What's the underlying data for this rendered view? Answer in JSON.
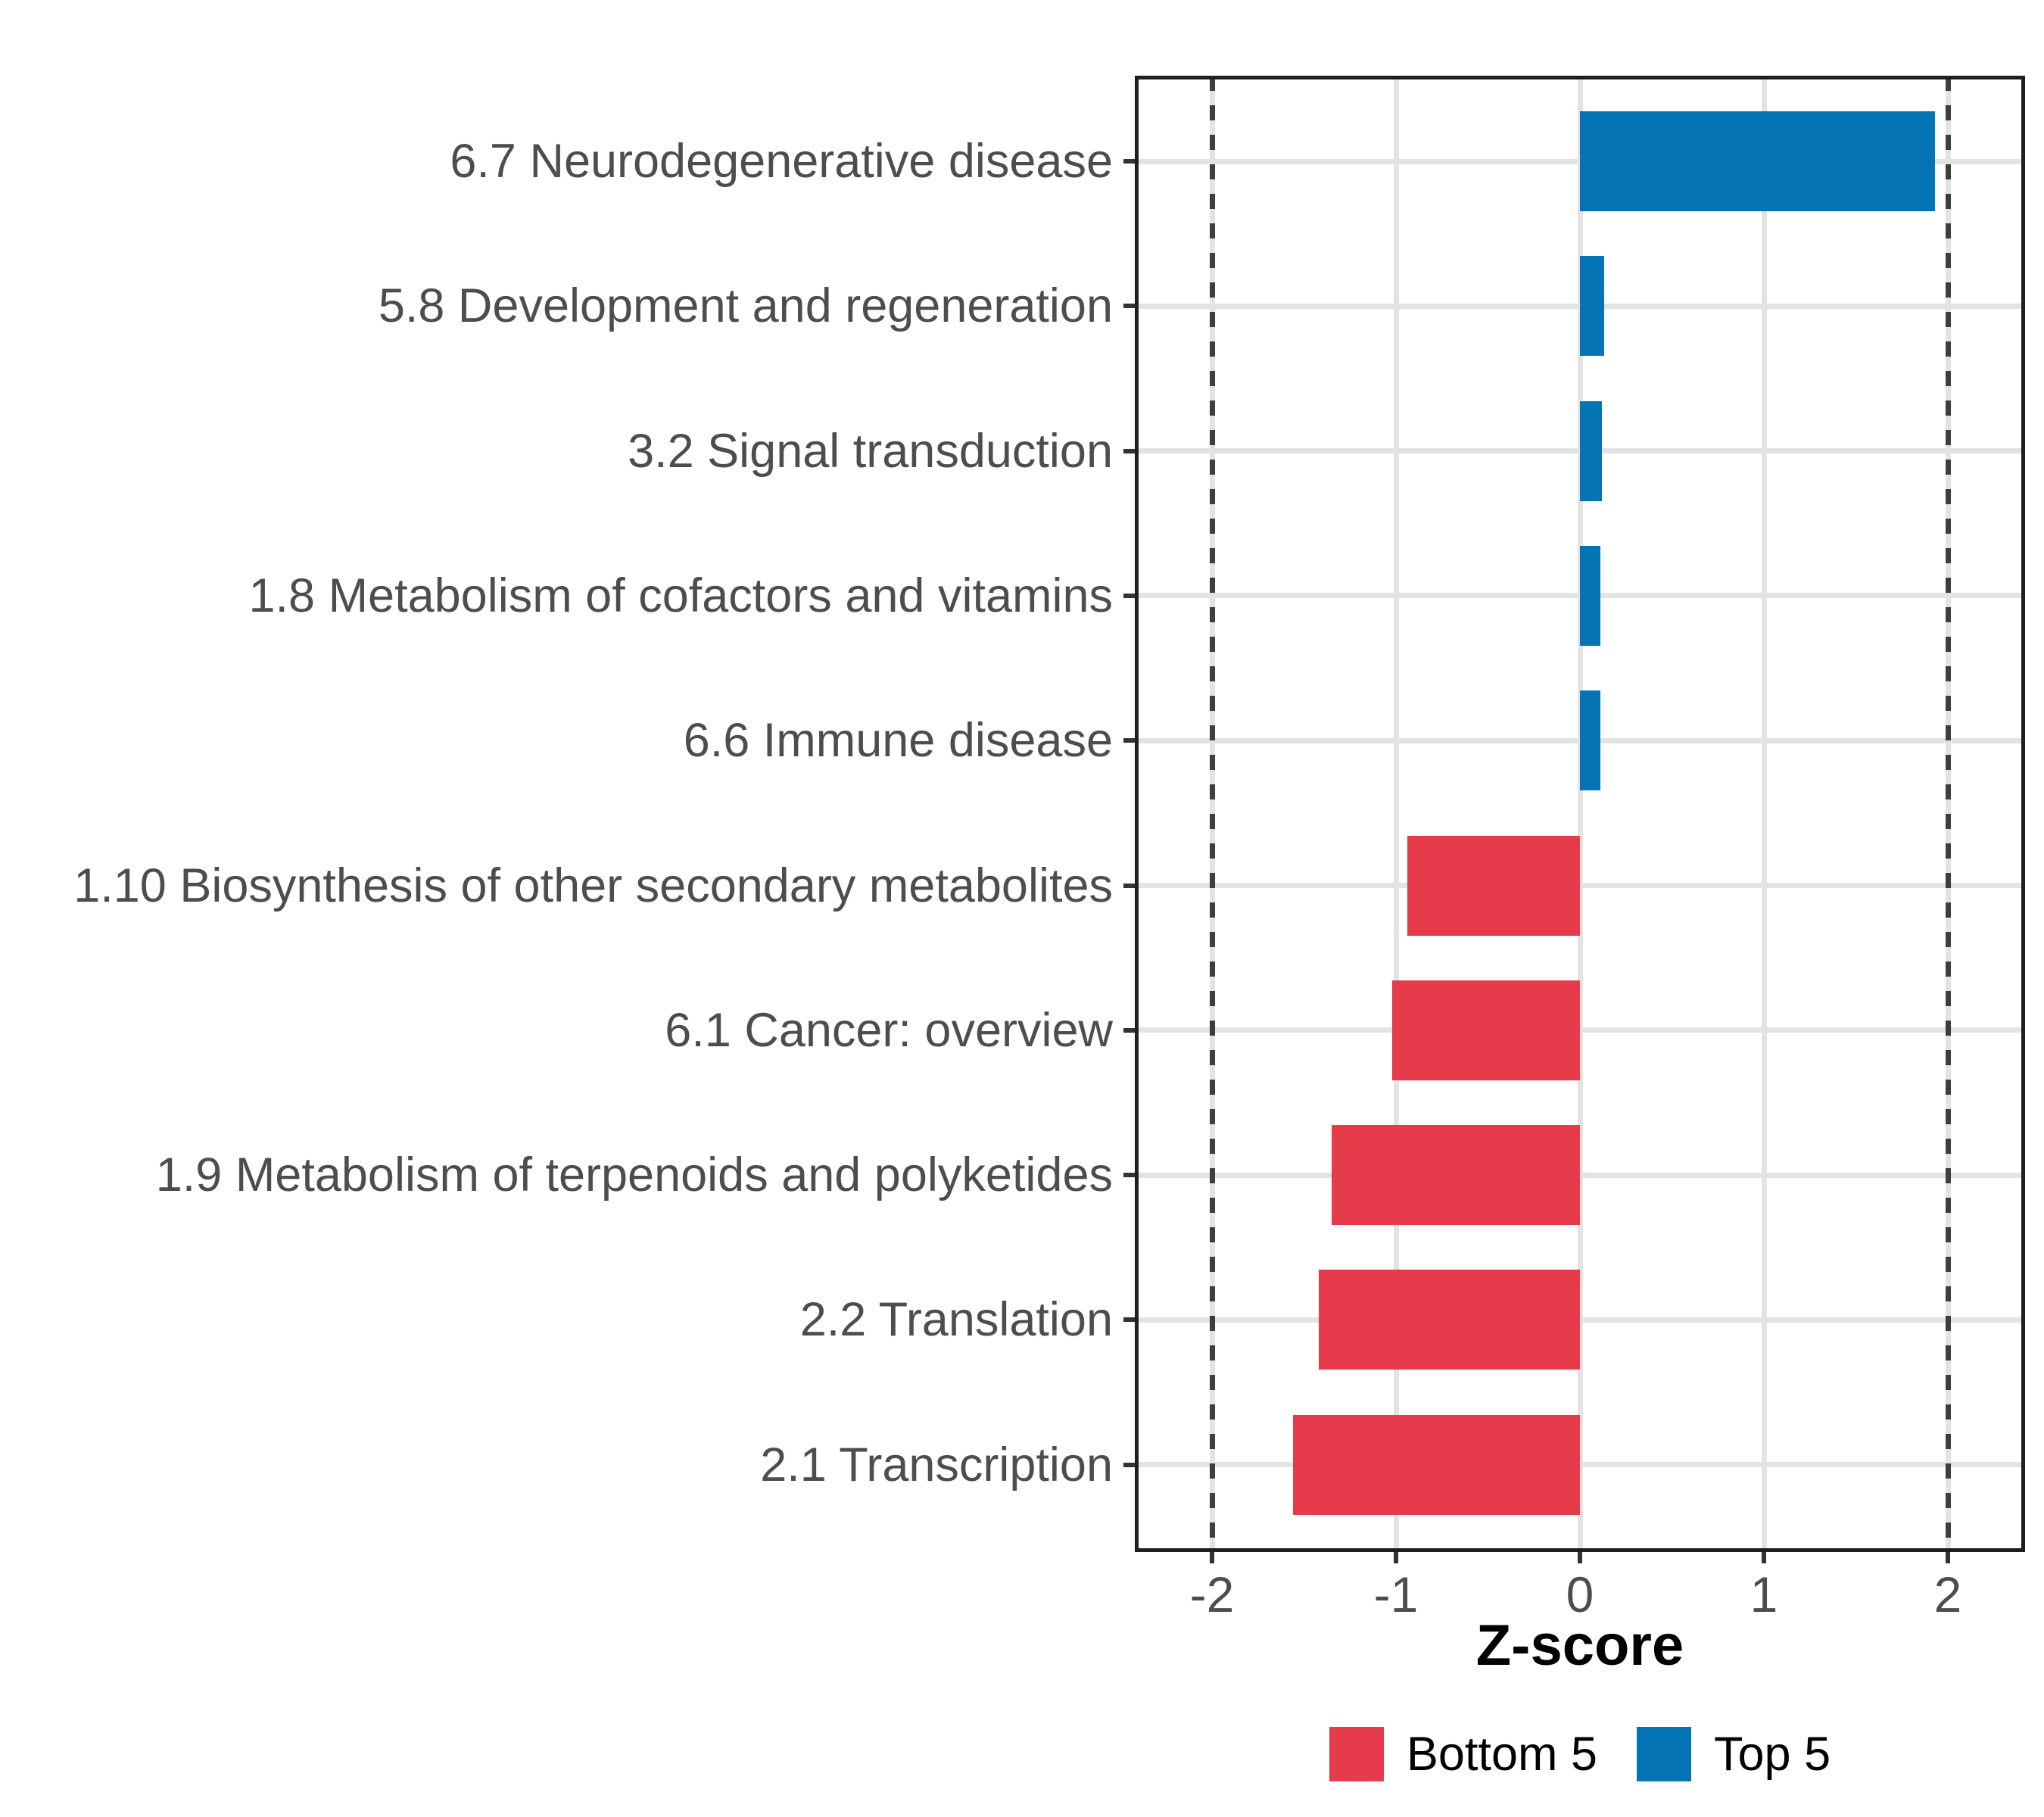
{
  "chart_data": {
    "type": "bar",
    "orientation": "horizontal",
    "xlabel": "Z-score",
    "categories": [
      "6.7 Neurodegenerative disease",
      "5.8 Development and regeneration",
      "3.2 Signal transduction",
      "1.8 Metabolism of cofactors and vitamins",
      "6.6 Immune disease",
      "1.10 Biosynthesis of other secondary metabolites",
      "6.1 Cancer: overview",
      "1.9 Metabolism of terpenoids and polyketides",
      "2.2 Translation",
      "2.1 Transcription"
    ],
    "series": [
      {
        "category": "6.7 Neurodegenerative disease",
        "value": 1.93,
        "group": "Top 5"
      },
      {
        "category": "5.8 Development and regeneration",
        "value": 0.13,
        "group": "Top 5"
      },
      {
        "category": "3.2 Signal transduction",
        "value": 0.12,
        "group": "Top 5"
      },
      {
        "category": "1.8 Metabolism of cofactors and vitamins",
        "value": 0.11,
        "group": "Top 5"
      },
      {
        "category": "6.6 Immune disease",
        "value": 0.11,
        "group": "Top 5"
      },
      {
        "category": "1.10 Biosynthesis of other secondary metabolites",
        "value": -0.94,
        "group": "Bottom 5"
      },
      {
        "category": "6.1 Cancer: overview",
        "value": -1.02,
        "group": "Bottom 5"
      },
      {
        "category": "1.9 Metabolism of terpenoids and polyketides",
        "value": -1.35,
        "group": "Bottom 5"
      },
      {
        "category": "2.2 Translation",
        "value": -1.42,
        "group": "Bottom 5"
      },
      {
        "category": "2.1 Transcription",
        "value": -1.56,
        "group": "Bottom 5"
      }
    ],
    "x_ticks": [
      -2,
      -1,
      0,
      1,
      2
    ],
    "x_tick_labels": [
      "-2",
      "-1",
      "0",
      "1",
      "2"
    ],
    "xlim": [
      -2.42,
      2.42
    ],
    "reference_lines": [
      -2,
      2
    ],
    "grid": "major only, light gray",
    "legend_position": "bottom",
    "legend": [
      {
        "label": "Bottom 5",
        "color": "#E63B4B"
      },
      {
        "label": "Top 5",
        "color": "#0474B4"
      }
    ],
    "colors": {
      "bottom5_red": "#E63B4B",
      "top5_blue": "#0474B4",
      "gridline": "#E3E3E3",
      "reference_dash": "#3E3E3E",
      "axis_text": "#4D4D4D",
      "panel_border": "#1F1F1F"
    }
  }
}
